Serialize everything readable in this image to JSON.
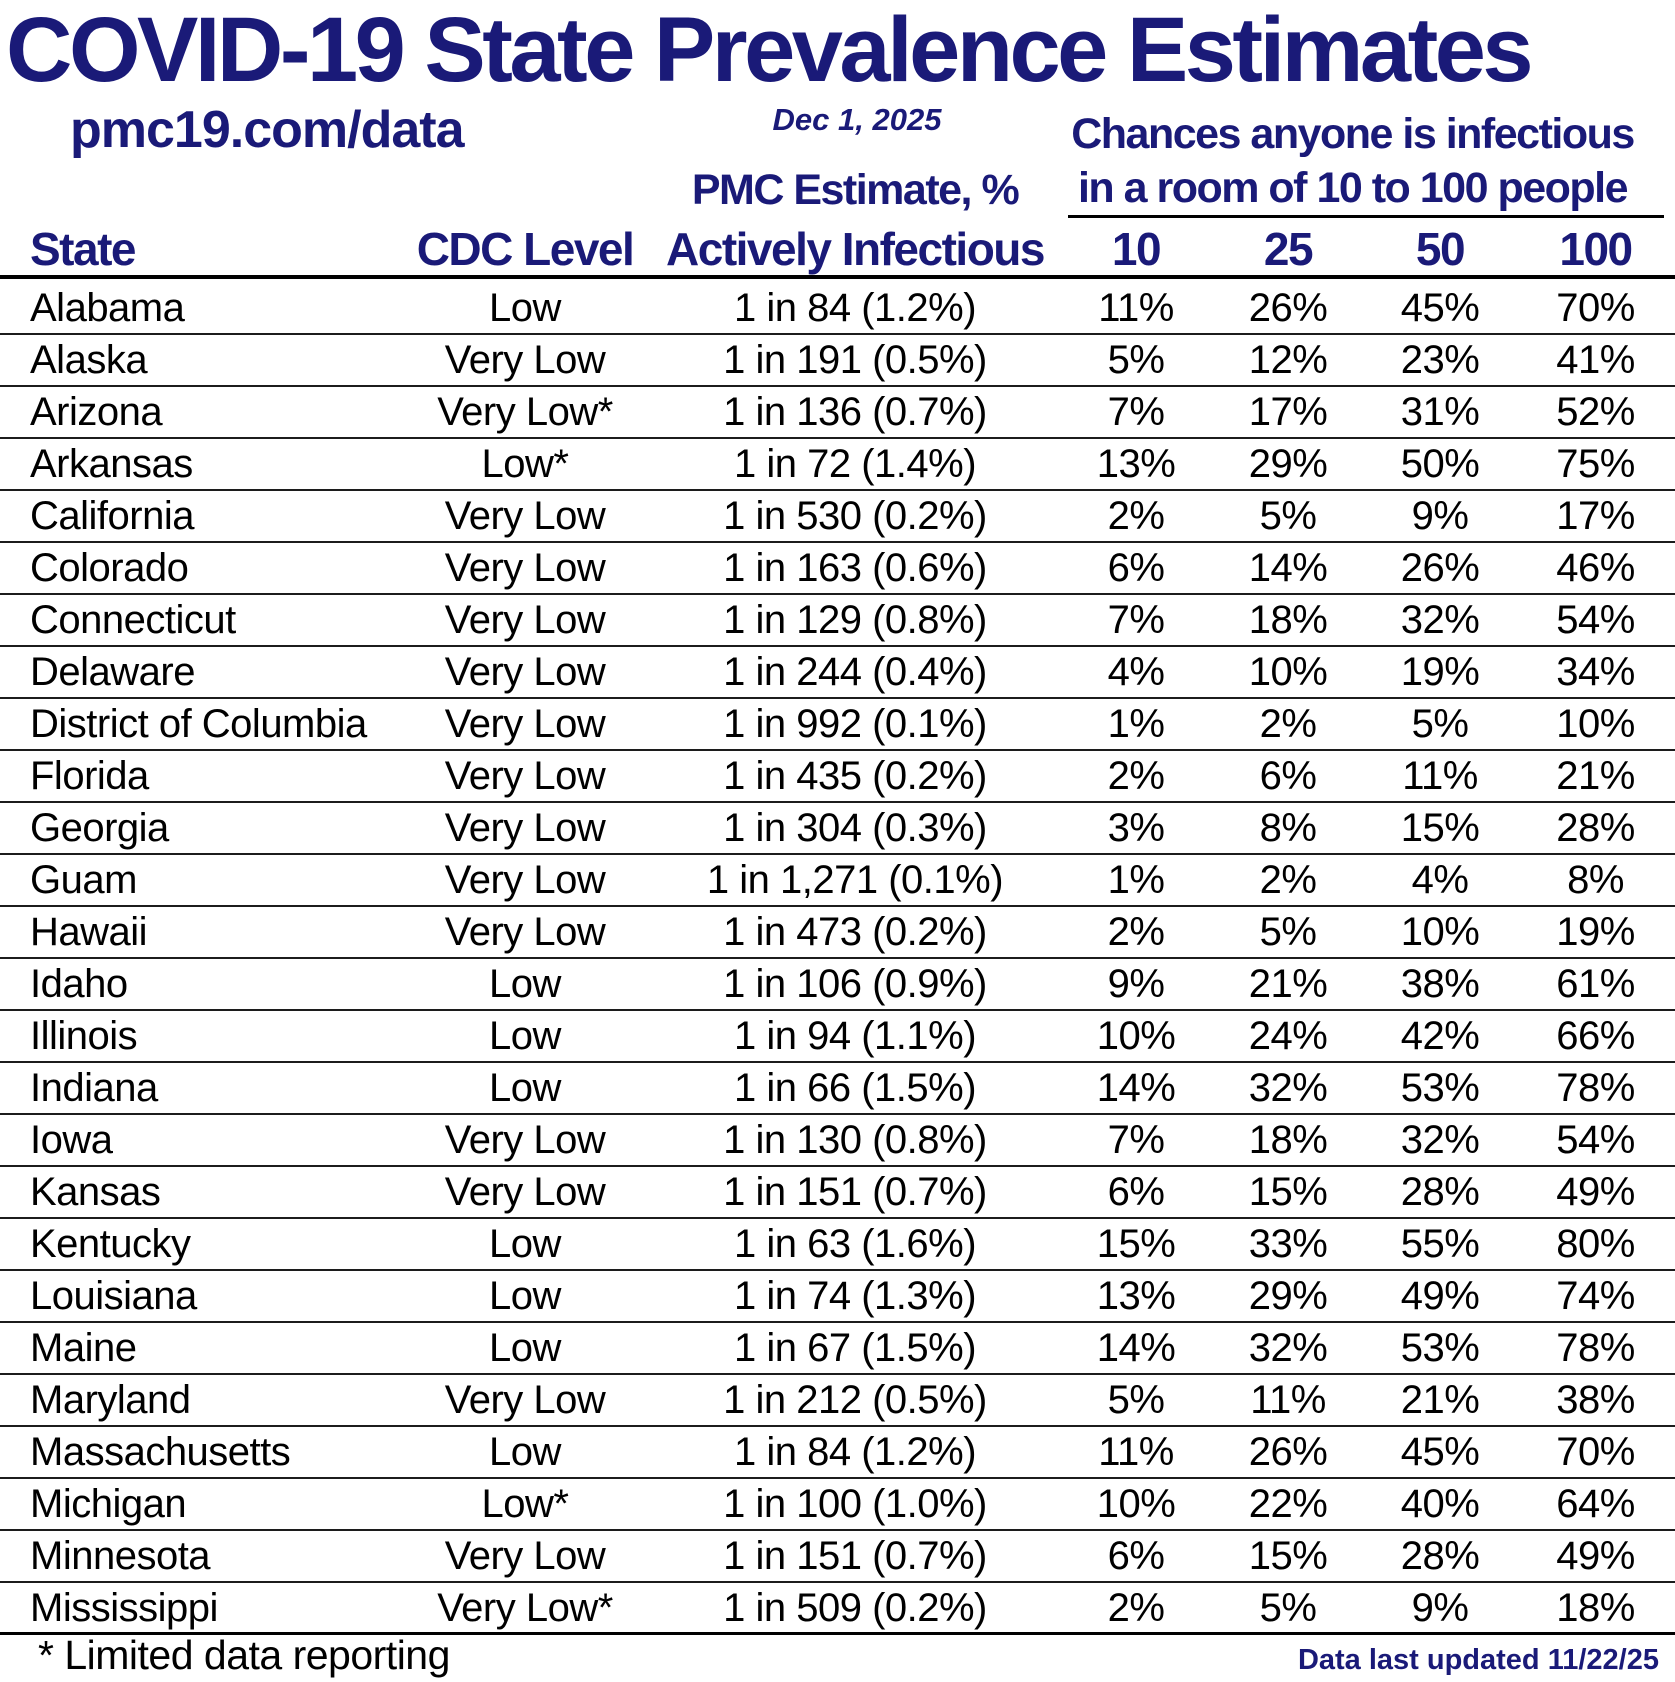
{
  "title": "COVID-19 State Prevalence Estimates",
  "source_link": "pmc19.com/data",
  "date": "Dec 1, 2025",
  "room_header": {
    "line1": "Chances anyone is infectious",
    "line2": "in a room of 10 to 100 people"
  },
  "pmc_header": {
    "line1": "PMC Estimate, %",
    "line2": "Actively Infectious"
  },
  "columns": {
    "state": "State",
    "cdc_level": "CDC Level",
    "room_sizes": [
      "10",
      "25",
      "50",
      "100"
    ]
  },
  "rows": [
    {
      "state": "Alabama",
      "cdc_level": "Low",
      "pmc_estimate": "1 in 84 (1.2%)",
      "room": [
        "11%",
        "26%",
        "45%",
        "70%"
      ]
    },
    {
      "state": "Alaska",
      "cdc_level": "Very Low",
      "pmc_estimate": "1 in 191 (0.5%)",
      "room": [
        "5%",
        "12%",
        "23%",
        "41%"
      ]
    },
    {
      "state": "Arizona",
      "cdc_level": "Very Low*",
      "pmc_estimate": "1 in 136 (0.7%)",
      "room": [
        "7%",
        "17%",
        "31%",
        "52%"
      ]
    },
    {
      "state": "Arkansas",
      "cdc_level": "Low*",
      "pmc_estimate": "1 in 72 (1.4%)",
      "room": [
        "13%",
        "29%",
        "50%",
        "75%"
      ]
    },
    {
      "state": "California",
      "cdc_level": "Very Low",
      "pmc_estimate": "1 in 530 (0.2%)",
      "room": [
        "2%",
        "5%",
        "9%",
        "17%"
      ]
    },
    {
      "state": "Colorado",
      "cdc_level": "Very Low",
      "pmc_estimate": "1 in 163 (0.6%)",
      "room": [
        "6%",
        "14%",
        "26%",
        "46%"
      ]
    },
    {
      "state": "Connecticut",
      "cdc_level": "Very Low",
      "pmc_estimate": "1 in 129 (0.8%)",
      "room": [
        "7%",
        "18%",
        "32%",
        "54%"
      ]
    },
    {
      "state": "Delaware",
      "cdc_level": "Very Low",
      "pmc_estimate": "1 in 244 (0.4%)",
      "room": [
        "4%",
        "10%",
        "19%",
        "34%"
      ]
    },
    {
      "state": "District of Columbia",
      "cdc_level": "Very Low",
      "pmc_estimate": "1 in 992 (0.1%)",
      "room": [
        "1%",
        "2%",
        "5%",
        "10%"
      ]
    },
    {
      "state": "Florida",
      "cdc_level": "Very Low",
      "pmc_estimate": "1 in 435 (0.2%)",
      "room": [
        "2%",
        "6%",
        "11%",
        "21%"
      ]
    },
    {
      "state": "Georgia",
      "cdc_level": "Very Low",
      "pmc_estimate": "1 in 304 (0.3%)",
      "room": [
        "3%",
        "8%",
        "15%",
        "28%"
      ]
    },
    {
      "state": "Guam",
      "cdc_level": "Very Low",
      "pmc_estimate": "1 in 1,271 (0.1%)",
      "room": [
        "1%",
        "2%",
        "4%",
        "8%"
      ]
    },
    {
      "state": "Hawaii",
      "cdc_level": "Very Low",
      "pmc_estimate": "1 in 473 (0.2%)",
      "room": [
        "2%",
        "5%",
        "10%",
        "19%"
      ]
    },
    {
      "state": "Idaho",
      "cdc_level": "Low",
      "pmc_estimate": "1 in 106 (0.9%)",
      "room": [
        "9%",
        "21%",
        "38%",
        "61%"
      ]
    },
    {
      "state": "Illinois",
      "cdc_level": "Low",
      "pmc_estimate": "1 in 94 (1.1%)",
      "room": [
        "10%",
        "24%",
        "42%",
        "66%"
      ]
    },
    {
      "state": "Indiana",
      "cdc_level": "Low",
      "pmc_estimate": "1 in 66 (1.5%)",
      "room": [
        "14%",
        "32%",
        "53%",
        "78%"
      ]
    },
    {
      "state": "Iowa",
      "cdc_level": "Very Low",
      "pmc_estimate": "1 in 130 (0.8%)",
      "room": [
        "7%",
        "18%",
        "32%",
        "54%"
      ]
    },
    {
      "state": "Kansas",
      "cdc_level": "Very Low",
      "pmc_estimate": "1 in 151 (0.7%)",
      "room": [
        "6%",
        "15%",
        "28%",
        "49%"
      ]
    },
    {
      "state": "Kentucky",
      "cdc_level": "Low",
      "pmc_estimate": "1 in 63 (1.6%)",
      "room": [
        "15%",
        "33%",
        "55%",
        "80%"
      ]
    },
    {
      "state": "Louisiana",
      "cdc_level": "Low",
      "pmc_estimate": "1 in 74 (1.3%)",
      "room": [
        "13%",
        "29%",
        "49%",
        "74%"
      ]
    },
    {
      "state": "Maine",
      "cdc_level": "Low",
      "pmc_estimate": "1 in 67 (1.5%)",
      "room": [
        "14%",
        "32%",
        "53%",
        "78%"
      ]
    },
    {
      "state": "Maryland",
      "cdc_level": "Very Low",
      "pmc_estimate": "1 in 212 (0.5%)",
      "room": [
        "5%",
        "11%",
        "21%",
        "38%"
      ]
    },
    {
      "state": "Massachusetts",
      "cdc_level": "Low",
      "pmc_estimate": "1 in 84 (1.2%)",
      "room": [
        "11%",
        "26%",
        "45%",
        "70%"
      ]
    },
    {
      "state": "Michigan",
      "cdc_level": "Low*",
      "pmc_estimate": "1 in 100 (1.0%)",
      "room": [
        "10%",
        "22%",
        "40%",
        "64%"
      ]
    },
    {
      "state": "Minnesota",
      "cdc_level": "Very Low",
      "pmc_estimate": "1 in 151 (0.7%)",
      "room": [
        "6%",
        "15%",
        "28%",
        "49%"
      ]
    },
    {
      "state": "Mississippi",
      "cdc_level": "Very Low*",
      "pmc_estimate": "1 in 509 (0.2%)",
      "room": [
        "2%",
        "5%",
        "9%",
        "18%"
      ]
    }
  ],
  "footnote": "* Limited data reporting",
  "last_updated": "Data last updated 11/22/25",
  "colors": {
    "navy": "#1a1a78",
    "text": "#000000",
    "rule": "#000000"
  }
}
